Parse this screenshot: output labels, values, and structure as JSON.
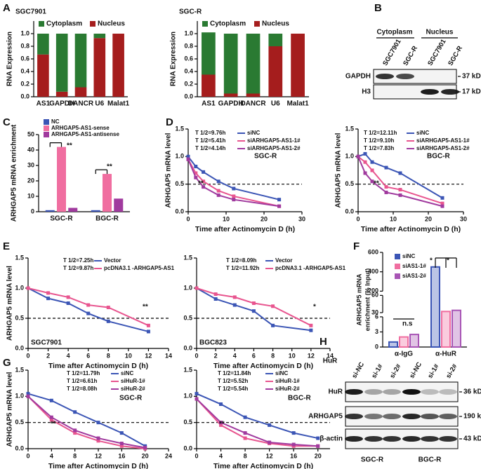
{
  "chart_data": [
    {
      "type": "bar",
      "stacked": true,
      "label": "A",
      "title": "SGC7901",
      "ylabel": "RNA Expression",
      "categories": [
        "AS1",
        "GAPDH",
        "DANCR",
        "U6",
        "Malat1"
      ],
      "category_colors": [
        "#f07f1b",
        "#2e9a3a",
        "#2e9a3a",
        "#f07f1b",
        "#c0282d"
      ],
      "series": [
        {
          "name": "Nucleus",
          "color": "#a51d1d",
          "values": [
            0.67,
            0.08,
            0.15,
            0.93,
            1.0
          ]
        },
        {
          "name": "Cytoplasm",
          "color": "#2a7a32",
          "values": [
            0.33,
            0.92,
            0.85,
            0.07,
            0
          ]
        }
      ],
      "ylim": [
        0,
        1.2
      ],
      "yticks": [
        {
          "value": 0,
          "label": "0.0"
        },
        {
          "value": 0.2,
          "label": "0.2"
        },
        {
          "value": 0.4,
          "label": "0.4"
        },
        {
          "value": 0.6,
          "label": "0.6"
        },
        {
          "value": 0.8,
          "label": "0.8"
        },
        {
          "value": 1,
          "label": "1.0"
        }
      ]
    },
    {
      "type": "bar",
      "stacked": true,
      "title": "SGC-R",
      "ylabel": "RNA Expression",
      "categories": [
        "AS1",
        "GAPDH",
        "DANCR",
        "U6",
        "Malat1"
      ],
      "category_colors": [
        "#f07f1b",
        "#2e9a3a",
        "#2e9a3a",
        "#f07f1b",
        "#c0282d"
      ],
      "series": [
        {
          "name": "Nucleus",
          "color": "#a51d1d",
          "values": [
            0.35,
            0.05,
            0.05,
            0.8,
            1.0
          ]
        },
        {
          "name": "Cytoplasm",
          "color": "#2a7a32",
          "values": [
            0.67,
            0.95,
            0.95,
            0.2,
            0
          ]
        }
      ],
      "ylim": [
        0,
        1.2
      ],
      "yticks": [
        {
          "value": 0,
          "label": "0.0"
        },
        {
          "value": 0.2,
          "label": "0.2"
        },
        {
          "value": 0.4,
          "label": "0.4"
        },
        {
          "value": 0.6,
          "label": "0.6"
        },
        {
          "value": 0.8,
          "label": "0.8"
        },
        {
          "value": 1,
          "label": "1.0"
        }
      ]
    },
    {
      "type": "bar",
      "label": "C",
      "ylabel": "ARHGAP5 mRNA enrichment",
      "categories": [
        "SGC-R",
        "BGC-R"
      ],
      "series": [
        {
          "name": "NC",
          "color": "#3b55b5",
          "values": [
            1,
            1
          ]
        },
        {
          "name": "ARHGAP5-AS1-sense",
          "color": "#f06ea0",
          "values": [
            42,
            24.5
          ]
        },
        {
          "name": "ARHGAP5-AS1-antisense",
          "color": "#a03a9e",
          "values": [
            2.5,
            8.5
          ]
        }
      ],
      "ylim": [
        0,
        50
      ],
      "yticks": [
        0,
        10,
        20,
        30,
        40,
        50
      ],
      "annotations": [
        "**",
        "**"
      ]
    },
    {
      "type": "line",
      "label": "D",
      "xlabel": "Time after Actinomycin D (h)",
      "ylabel": "ARHGAP5 mRNA level",
      "x": [
        0,
        2,
        4,
        8,
        12,
        24
      ],
      "xlim": [
        0,
        30
      ],
      "xticks": [
        0,
        10,
        20,
        30
      ],
      "ylim": [
        0,
        1.5
      ],
      "yticks": [
        {
          "value": 0,
          "label": "0.0"
        },
        {
          "value": 0.5,
          "label": "0.5"
        },
        {
          "value": 1,
          "label": "1.0"
        },
        {
          "value": 1.5,
          "label": "1.5"
        }
      ],
      "reference_line": 0.5,
      "series": [
        {
          "name": "siNC",
          "label": "T 1/2=9.76h",
          "color": "#3b55b5",
          "values": [
            1.0,
            0.82,
            0.72,
            0.55,
            0.42,
            0.22
          ]
        },
        {
          "name": "siARHGAP5-AS1-1#",
          "label": "T 1/2=5.41h",
          "color": "#e8558f",
          "values": [
            0.95,
            0.7,
            0.55,
            0.38,
            0.28,
            0.1
          ]
        },
        {
          "name": "siARHGAP5-AS1-2#",
          "label": "T 1/2=4.14h",
          "color": "#a03a9e",
          "values": [
            0.95,
            0.62,
            0.45,
            0.3,
            0.22,
            0.1
          ]
        }
      ],
      "annotations": [
        "SGC-R",
        "**"
      ]
    },
    {
      "type": "line",
      "xlabel": "Time after Actinomycin D (h)",
      "ylabel": "ARHGAP5 mRNA level",
      "x": [
        0,
        2,
        4,
        8,
        12,
        24
      ],
      "xlim": [
        0,
        30
      ],
      "xticks": [
        0,
        10,
        20,
        30
      ],
      "ylim": [
        0,
        1.5
      ],
      "yticks": [
        {
          "value": 0,
          "label": "0.0"
        },
        {
          "value": 0.5,
          "label": "0.5"
        },
        {
          "value": 1,
          "label": "1.0"
        },
        {
          "value": 1.5,
          "label": "1.5"
        }
      ],
      "reference_line": 0.5,
      "series": [
        {
          "name": "siNC",
          "label": "T 1/2=12.11h",
          "color": "#3b55b5",
          "values": [
            1.0,
            1.05,
            0.9,
            0.8,
            0.7,
            0.25
          ]
        },
        {
          "name": "siARHGAP5-AS1-1#",
          "label": "T 1/2=9.10h",
          "color": "#e8558f",
          "values": [
            1.0,
            0.9,
            0.75,
            0.45,
            0.4,
            0.15
          ]
        },
        {
          "name": "siARHGAP5-AS1-2#",
          "label": "T 1/2=7.83h",
          "color": "#a03a9e",
          "values": [
            1.0,
            0.7,
            0.55,
            0.35,
            0.3,
            0.1
          ]
        }
      ],
      "annotations": [
        "BGC-R",
        "**"
      ]
    },
    {
      "type": "line",
      "label": "E",
      "xlabel": "Time after Actinomycin D (h)",
      "ylabel": "ARHGAP5 mRNA level",
      "x": [
        0,
        2,
        4,
        6,
        8,
        12
      ],
      "xlim": [
        0,
        14
      ],
      "xticks": [
        0,
        2,
        4,
        6,
        8,
        10,
        12,
        14
      ],
      "ylim": [
        0,
        1.5
      ],
      "yticks": [
        {
          "value": 0,
          "label": "0.0"
        },
        {
          "value": 0.5,
          "label": "0.5"
        },
        {
          "value": 1,
          "label": "1.0"
        },
        {
          "value": 1.5,
          "label": "1.5"
        }
      ],
      "reference_line": 0.5,
      "series": [
        {
          "name": "Vector",
          "label": "T 1/2=7.25h",
          "color": "#3b55b5",
          "values": [
            1.0,
            0.83,
            0.75,
            0.58,
            0.45,
            0.28
          ]
        },
        {
          "name": "pcDNA3.1 -ARHGAP5-AS1",
          "label": "T 1/2=9.87h",
          "color": "#e8558f",
          "values": [
            1.0,
            0.92,
            0.85,
            0.72,
            0.68,
            0.38
          ]
        }
      ],
      "annotations": [
        "SGC7901",
        "**"
      ]
    },
    {
      "type": "line",
      "xlabel": "Time after Actinomycin D (h)",
      "x": [
        0,
        2,
        4,
        6,
        8,
        12
      ],
      "xlim": [
        0,
        14
      ],
      "xticks": [
        0,
        2,
        4,
        6,
        8,
        10,
        12,
        14
      ],
      "ylim": [
        0,
        1.5
      ],
      "yticks": [
        {
          "value": 0,
          "label": "0.0"
        },
        {
          "value": 0.5,
          "label": "0.5"
        },
        {
          "value": 1,
          "label": "1.0"
        },
        {
          "value": 1.5,
          "label": "1.5"
        }
      ],
      "reference_line": 0.5,
      "series": [
        {
          "name": "Vector",
          "label": "T 1/2=8.09h",
          "color": "#3b55b5",
          "values": [
            1.0,
            0.82,
            0.72,
            0.62,
            0.38,
            0.3
          ]
        },
        {
          "name": "pcDNA3.1 -ARHGAP5-AS1",
          "label": "T 1/2=11.92h",
          "color": "#e8558f",
          "values": [
            1.0,
            0.9,
            0.85,
            0.75,
            0.7,
            0.38
          ]
        }
      ],
      "annotations": [
        "BGC823",
        "*"
      ]
    },
    {
      "type": "bar",
      "label": "F",
      "ylabel": [
        "ARHGAP5 mRNA",
        "enrichment (% Input)"
      ],
      "categories": [
        "α-IgG",
        "α-HuR"
      ],
      "series": [
        {
          "name": "siNC",
          "color": "#3b55b5",
          "values": [
            1,
            450
          ]
        },
        {
          "name": "siAS1-1#",
          "color": "#f06ea0",
          "values": [
            2,
            32
          ]
        },
        {
          "name": "siAS1-2#",
          "color": "#a855b5",
          "values": [
            2.5,
            34
          ]
        }
      ],
      "ylim": [
        0,
        600
      ],
      "axis_breaks": [
        [
          6,
          30
        ],
        [
          60,
          200
        ]
      ],
      "yticks": [
        0,
        3,
        6,
        30,
        60,
        200,
        400,
        600
      ],
      "annotations": [
        "n.s",
        "*",
        "*"
      ]
    },
    {
      "type": "line",
      "label": "G",
      "xlabel": "Time after Actinomycin D (h)",
      "ylabel": "ARHGAP5 mRNA level",
      "x": [
        0,
        4,
        8,
        12,
        16,
        20
      ],
      "xlim": [
        0,
        24
      ],
      "xticks": [
        0,
        4,
        8,
        12,
        16,
        20,
        24
      ],
      "ylim": [
        0,
        1.5
      ],
      "yticks": [
        {
          "value": 0,
          "label": "0.0"
        },
        {
          "value": 0.5,
          "label": "0.5"
        },
        {
          "value": 1,
          "label": "1.0"
        },
        {
          "value": 1.5,
          "label": "1.5"
        }
      ],
      "reference_line": 0.5,
      "series": [
        {
          "name": "siNC",
          "label": "T 1/2=11.79h",
          "color": "#3b55b5",
          "values": [
            1.05,
            0.92,
            0.7,
            0.5,
            0.3,
            0.05
          ]
        },
        {
          "name": "siHuR-1#",
          "label": "T 1/2=6.61h",
          "color": "#e8558f",
          "values": [
            1.0,
            0.55,
            0.3,
            0.15,
            0.05,
            0.0
          ]
        },
        {
          "name": "siHuR-2#",
          "label": "T 1/2=8.08h",
          "color": "#a03a9e",
          "values": [
            1.0,
            0.6,
            0.35,
            0.2,
            0.1,
            0.02
          ]
        }
      ],
      "annotations": [
        "SGC-R",
        "**"
      ]
    },
    {
      "type": "line",
      "xlabel": "Time after Actinomycin D (h)",
      "x": [
        0,
        4,
        8,
        12,
        16,
        20
      ],
      "xlim": [
        0,
        22
      ],
      "xticks": [
        0,
        4,
        8,
        12,
        16,
        20
      ],
      "ylim": [
        0,
        1.5
      ],
      "yticks": [
        {
          "value": 0,
          "label": "0.0"
        },
        {
          "value": 0.5,
          "label": "0.5"
        },
        {
          "value": 1,
          "label": "1.0"
        },
        {
          "value": 1.5,
          "label": "1.5"
        }
      ],
      "reference_line": 0.5,
      "series": [
        {
          "name": "siNC",
          "label": "T 1/2=11.84h",
          "color": "#3b55b5",
          "values": [
            1.05,
            0.85,
            0.6,
            0.45,
            0.3,
            0.2
          ]
        },
        {
          "name": "siHuR-1#",
          "label": "T 1/2=5.52h",
          "color": "#e8558f",
          "values": [
            0.95,
            0.45,
            0.2,
            0.1,
            0.05,
            0.05
          ]
        },
        {
          "name": "siHuR-2#",
          "label": "T 1/2=5.54h",
          "color": "#a03a9e",
          "values": [
            0.95,
            0.5,
            0.3,
            0.12,
            0.08,
            0.05
          ]
        }
      ],
      "annotations": [
        "BGC-R",
        "**"
      ]
    }
  ],
  "blots": [
    {
      "label": "B",
      "groups": [
        "Cytoplasm",
        "Nucleus"
      ],
      "lanes": [
        "SGC7901",
        "SGC-R",
        "SGC7901",
        "SGC-R"
      ],
      "rows": [
        "GAPDH",
        "H3"
      ],
      "sizes": [
        "37 kD",
        "17 kD"
      ]
    },
    {
      "label": "H",
      "lane_title": "HuR",
      "lanes": [
        "si-NC",
        "si-1#",
        "si-2#",
        "si-NC",
        "si-1#",
        "si-2#"
      ],
      "rows": [
        "HuR",
        "ARHGAP5",
        "β-actin"
      ],
      "sizes": [
        "36 kD",
        "190 kD",
        "43 kD"
      ],
      "groups": [
        "SGC-R",
        "BGC-R"
      ]
    }
  ]
}
